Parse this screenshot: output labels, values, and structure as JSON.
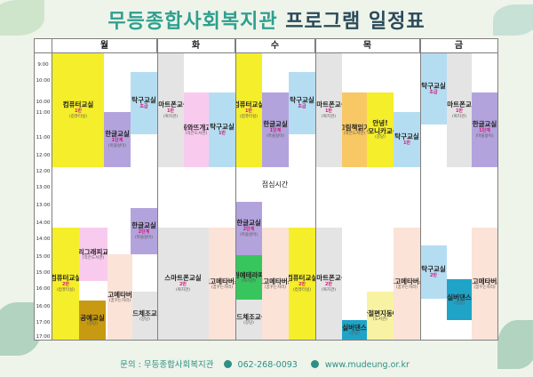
{
  "title_part1": "무등종합사회복지관",
  "title_part2": "프로그램 일정표",
  "days": [
    "월",
    "화",
    "수",
    "목",
    "금"
  ],
  "times": [
    "9:00",
    "10:00",
    "10:00",
    "11:00",
    "11:00",
    "12:00",
    "12:00",
    "13:00",
    "13:00",
    "14:00",
    "14:00",
    "15:00",
    "15:00",
    "16:00",
    "16:00",
    "17:00",
    "17:00"
  ],
  "lunch": "점심시간",
  "blocks": {
    "mon_computer": {
      "title": "컴퓨터교실",
      "count": "1반",
      "place": "(컴퓨터실)"
    },
    "mon_korean": {
      "title": "한글교실",
      "count": "1단계",
      "place": "(마을살이)"
    },
    "mon_piano": {
      "title": "탁구교실",
      "count": "초급"
    },
    "mon_calli": {
      "title": "캘리그래피교실",
      "place": "(작은도서관)"
    },
    "mon_korean2": {
      "title": "한글교실",
      "count": "2단계",
      "place": "(마을살이)"
    },
    "mon_computer2": {
      "title": "컴퓨터교실",
      "count": "2반",
      "place": "(컴퓨터실)"
    },
    "mon_craft": {
      "title": "공예교실",
      "place": "(강당)"
    },
    "mon_metaverse": {
      "title": "고고메타버스",
      "place": "(꿈꾸는자리)"
    },
    "mon_band": {
      "title": "밴드체조교실",
      "place": "(강당)"
    },
    "tue_smart": {
      "title": "스마트폰교실",
      "count": "1반",
      "place": "(복지관)"
    },
    "tue_fairy": {
      "title": "동화와뜨개교실",
      "place": "(작은도서관)"
    },
    "tue_table": {
      "title": "탁구교실",
      "count": "1반"
    },
    "tue_smart2": {
      "title": "스마트폰교실",
      "count": "2반",
      "place": "(복지관)"
    },
    "tue_metaverse": {
      "title": "고고메타버스",
      "place": "(꿈꾸는자리)"
    },
    "wed_computer": {
      "title": "컴퓨터교실",
      "count": "1반",
      "place": "(컴퓨터실)"
    },
    "wed_korean": {
      "title": "한글교실",
      "count": "1단계",
      "place": "(마을살이)"
    },
    "wed_table": {
      "title": "탁구교실",
      "count": "초급"
    },
    "wed_korean2": {
      "title": "한글교실",
      "count": "2단계",
      "place": "(마을살이)"
    },
    "wed_garden": {
      "title": "원예테라피",
      "place": "(복지관)"
    },
    "wed_band": {
      "title": "밴드체조교실",
      "place": "(강당)"
    },
    "wed_metaverse": {
      "title": "고고메타버스",
      "place": "(꿈꾸는자리)"
    },
    "wed_computer2": {
      "title": "컴퓨터교실",
      "count": "2반",
      "place": "(컴퓨터실)"
    },
    "thu_smart": {
      "title": "스마트폰교실",
      "count": "1반",
      "place": "(복지관)"
    },
    "thu_picture": {
      "title": "그림책읽기",
      "place": "(작은도서관)"
    },
    "thu_harmonica": {
      "title": "안녕!하모니카교실",
      "place": "(강당)"
    },
    "thu_table": {
      "title": "탁구교실",
      "count": "1반"
    },
    "thu_smart2": {
      "title": "스마트폰교실",
      "count": "2반",
      "place": "(복지관)"
    },
    "thu_silver": {
      "title": "실버댄스",
      "place": "(강당)"
    },
    "thu_habit": {
      "title": "습관절편지동아리",
      "place": "(도서관)"
    },
    "thu_metaverse": {
      "title": "고고메타버스",
      "place": "(꿈꾸는자리)"
    },
    "fri_table": {
      "title": "탁구교실",
      "count": "초급"
    },
    "fri_smart": {
      "title": "스마트폰교실",
      "count": "1반",
      "place": "(복지관)"
    },
    "fri_korean": {
      "title": "한글교실",
      "count": "1단계",
      "place": "(마을살이)"
    },
    "fri_table2": {
      "title": "탁구교실",
      "count": "2반"
    },
    "fri_silver": {
      "title": "실버댄스",
      "place": "(강당)"
    },
    "fri_metaverse": {
      "title": "고고메타버스",
      "place": "(꿈꾸는자리)"
    }
  },
  "footer": {
    "contact": "문의 : 무등종합사회복지관",
    "phone": "062-268-0093",
    "web": "www.mudeung.or.kr"
  },
  "colors": {
    "yellow": "#f5ee2a",
    "purple": "#b3a3dc",
    "blue": "#b5ddf2",
    "gray": "#e4e4e4",
    "pink": "#f8cbee",
    "peach": "#fbe3d7",
    "orange": "#f8c865",
    "green": "#37c65d",
    "gold": "#c89a12",
    "lightyellow": "#f8f3a3",
    "teal": "#1fa4c8"
  }
}
